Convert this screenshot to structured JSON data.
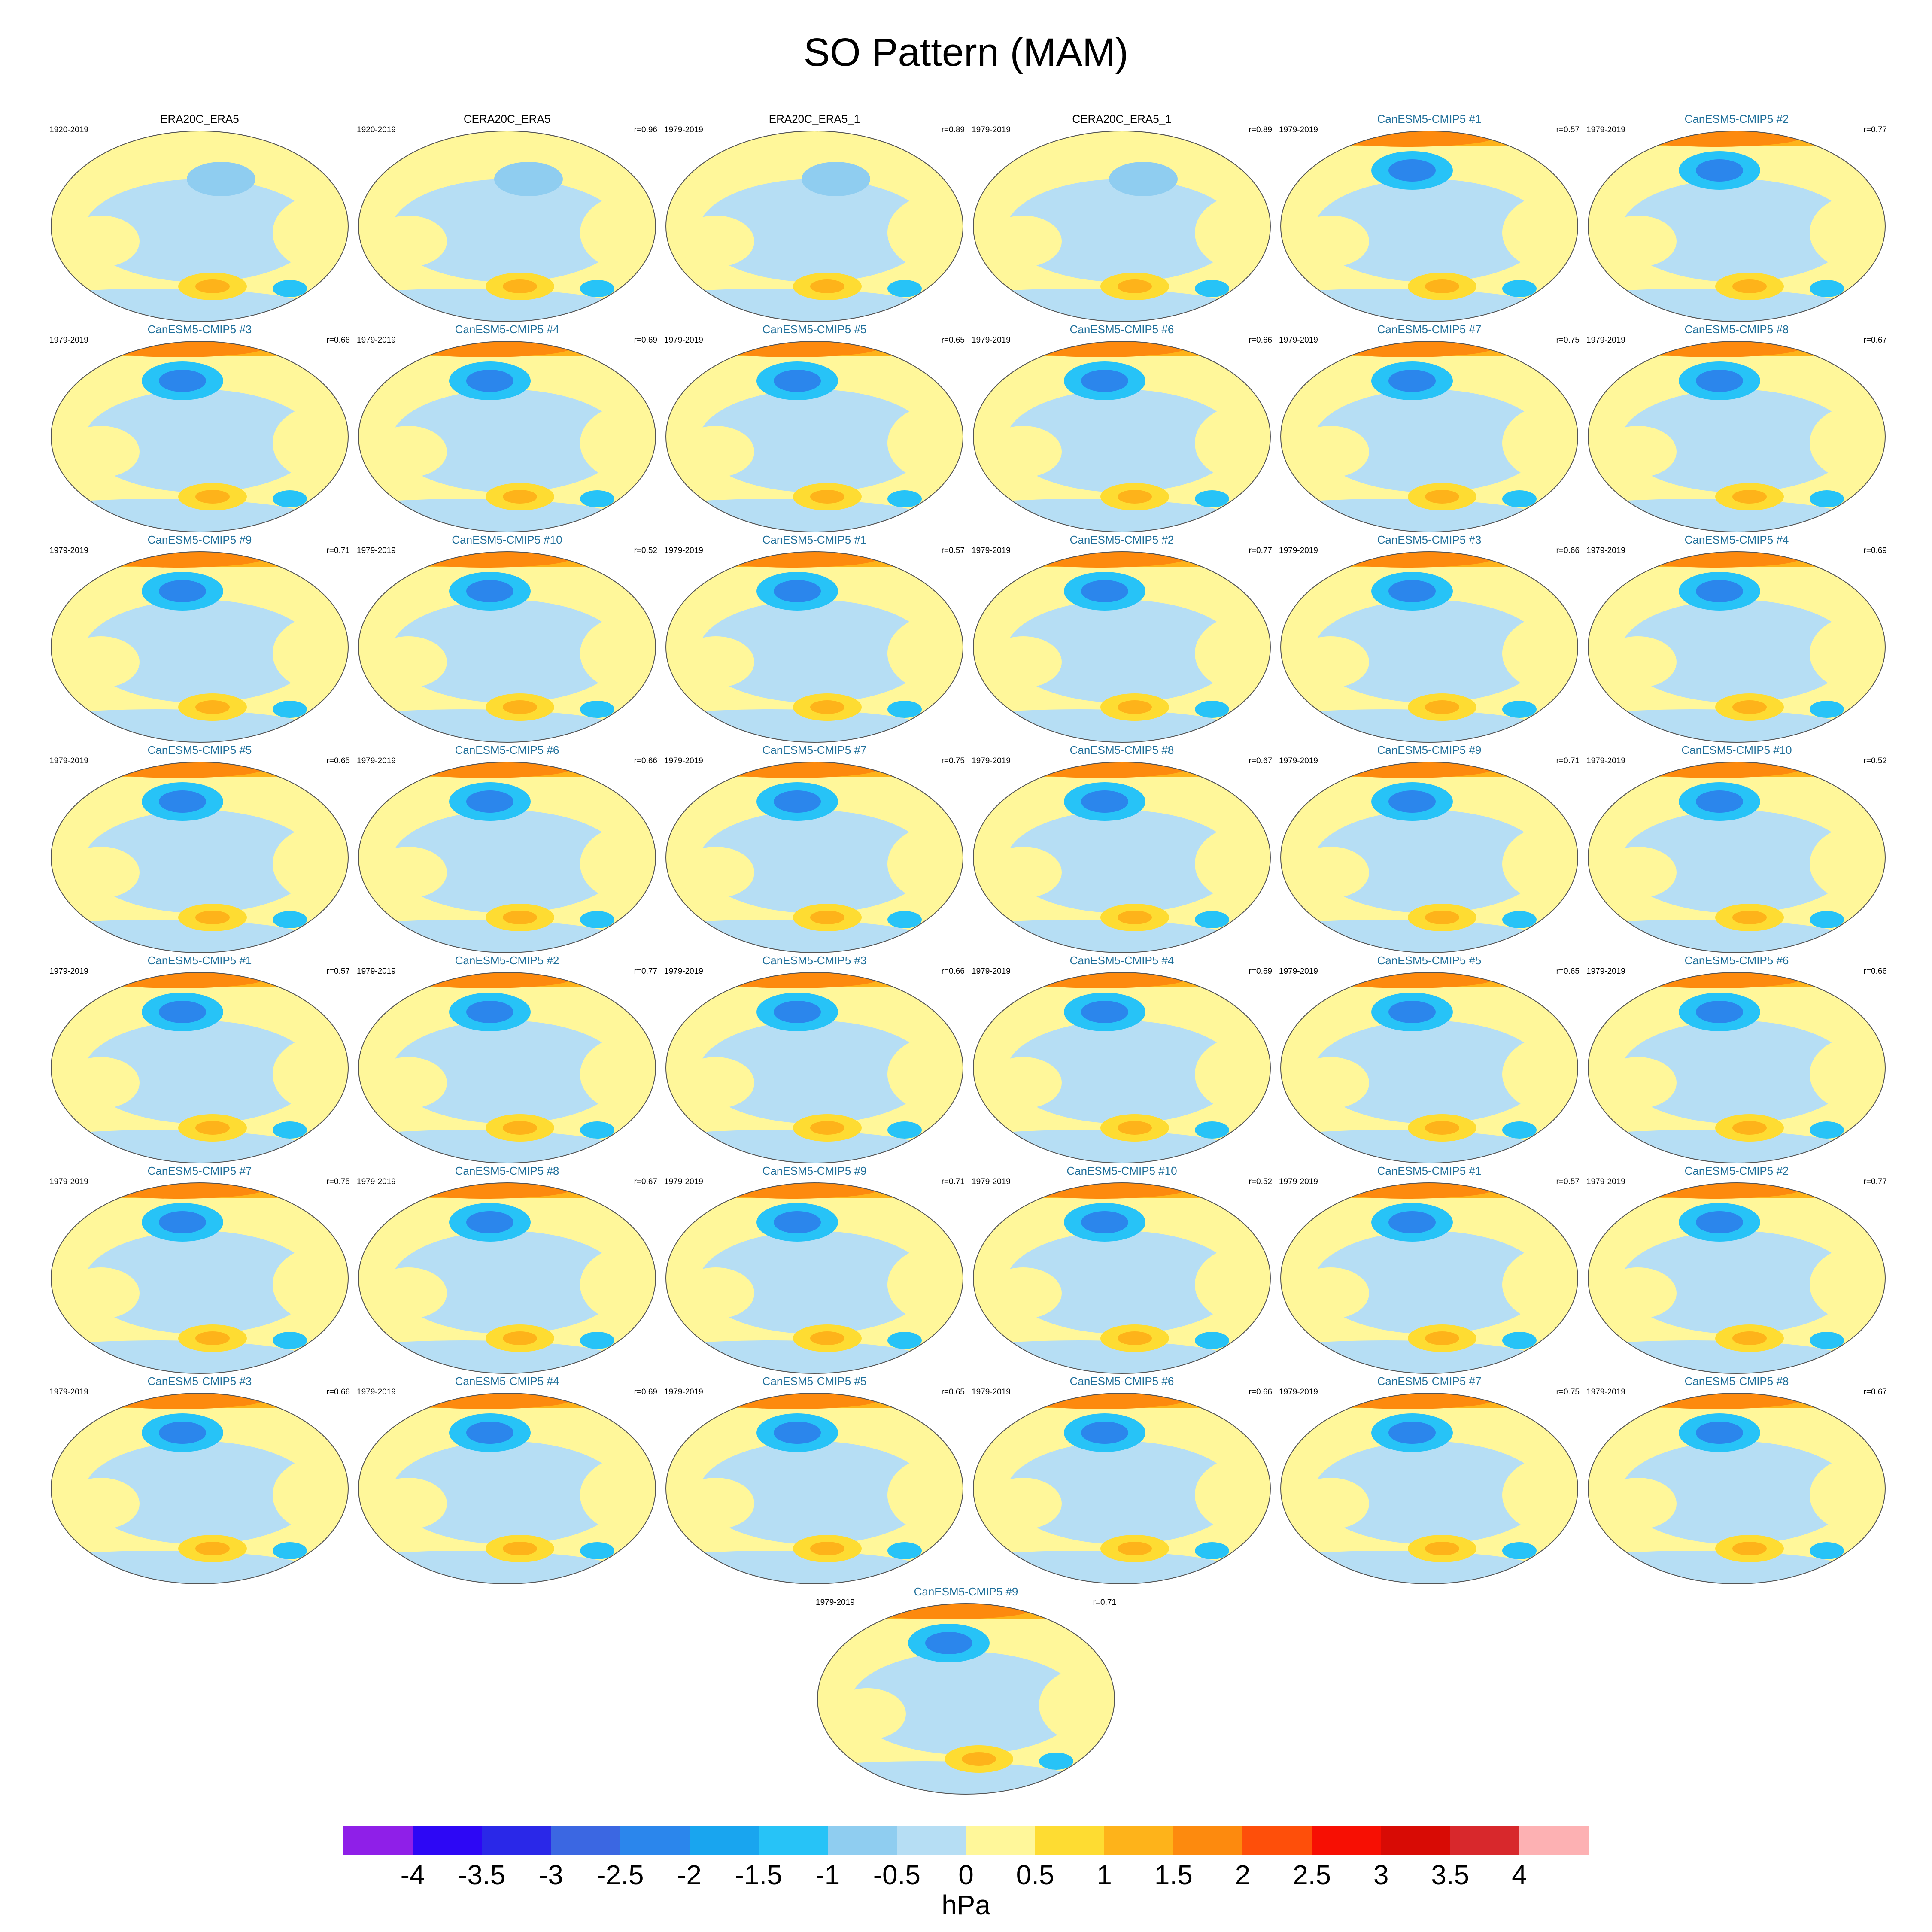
{
  "title": "SO Pattern (MAM)",
  "panels": [
    {
      "name": "ERA20C_ERA5",
      "period": "1920-2019",
      "r": "",
      "type": "ref"
    },
    {
      "name": "CERA20C_ERA5",
      "period": "1920-2019",
      "r": "r=0.96",
      "type": "ref"
    },
    {
      "name": "ERA20C_ERA5_1",
      "period": "1979-2019",
      "r": "r=0.89",
      "type": "ref"
    },
    {
      "name": "CERA20C_ERA5_1",
      "period": "1979-2019",
      "r": "r=0.89",
      "type": "ref"
    },
    {
      "name": "CanESM5-CMIP5 #1",
      "period": "1979-2019",
      "r": "r=0.57",
      "type": "model"
    },
    {
      "name": "CanESM5-CMIP5 #2",
      "period": "1979-2019",
      "r": "r=0.77",
      "type": "model"
    },
    {
      "name": "CanESM5-CMIP5 #3",
      "period": "1979-2019",
      "r": "r=0.66",
      "type": "model"
    },
    {
      "name": "CanESM5-CMIP5 #4",
      "period": "1979-2019",
      "r": "r=0.69",
      "type": "model"
    },
    {
      "name": "CanESM5-CMIP5 #5",
      "period": "1979-2019",
      "r": "r=0.65",
      "type": "model"
    },
    {
      "name": "CanESM5-CMIP5 #6",
      "period": "1979-2019",
      "r": "r=0.66",
      "type": "model"
    },
    {
      "name": "CanESM5-CMIP5 #7",
      "period": "1979-2019",
      "r": "r=0.75",
      "type": "model"
    },
    {
      "name": "CanESM5-CMIP5 #8",
      "period": "1979-2019",
      "r": "r=0.67",
      "type": "model"
    },
    {
      "name": "CanESM5-CMIP5 #9",
      "period": "1979-2019",
      "r": "r=0.71",
      "type": "model"
    },
    {
      "name": "CanESM5-CMIP5 #10",
      "period": "1979-2019",
      "r": "r=0.52",
      "type": "model"
    },
    {
      "name": "CanESM5-CMIP5 #1",
      "period": "1979-2019",
      "r": "r=0.57",
      "type": "model"
    },
    {
      "name": "CanESM5-CMIP5 #2",
      "period": "1979-2019",
      "r": "r=0.77",
      "type": "model"
    },
    {
      "name": "CanESM5-CMIP5 #3",
      "period": "1979-2019",
      "r": "r=0.66",
      "type": "model"
    },
    {
      "name": "CanESM5-CMIP5 #4",
      "period": "1979-2019",
      "r": "r=0.69",
      "type": "model"
    },
    {
      "name": "CanESM5-CMIP5 #5",
      "period": "1979-2019",
      "r": "r=0.65",
      "type": "model"
    },
    {
      "name": "CanESM5-CMIP5 #6",
      "period": "1979-2019",
      "r": "r=0.66",
      "type": "model"
    },
    {
      "name": "CanESM5-CMIP5 #7",
      "period": "1979-2019",
      "r": "r=0.75",
      "type": "model"
    },
    {
      "name": "CanESM5-CMIP5 #8",
      "period": "1979-2019",
      "r": "r=0.67",
      "type": "model"
    },
    {
      "name": "CanESM5-CMIP5 #9",
      "period": "1979-2019",
      "r": "r=0.71",
      "type": "model"
    },
    {
      "name": "CanESM5-CMIP5 #10",
      "period": "1979-2019",
      "r": "r=0.52",
      "type": "model"
    },
    {
      "name": "CanESM5-CMIP5 #1",
      "period": "1979-2019",
      "r": "r=0.57",
      "type": "model"
    },
    {
      "name": "CanESM5-CMIP5 #2",
      "period": "1979-2019",
      "r": "r=0.77",
      "type": "model"
    },
    {
      "name": "CanESM5-CMIP5 #3",
      "period": "1979-2019",
      "r": "r=0.66",
      "type": "model"
    },
    {
      "name": "CanESM5-CMIP5 #4",
      "period": "1979-2019",
      "r": "r=0.69",
      "type": "model"
    },
    {
      "name": "CanESM5-CMIP5 #5",
      "period": "1979-2019",
      "r": "r=0.65",
      "type": "model"
    },
    {
      "name": "CanESM5-CMIP5 #6",
      "period": "1979-2019",
      "r": "r=0.66",
      "type": "model"
    },
    {
      "name": "CanESM5-CMIP5 #7",
      "period": "1979-2019",
      "r": "r=0.75",
      "type": "model"
    },
    {
      "name": "CanESM5-CMIP5 #8",
      "period": "1979-2019",
      "r": "r=0.67",
      "type": "model"
    },
    {
      "name": "CanESM5-CMIP5 #9",
      "period": "1979-2019",
      "r": "r=0.71",
      "type": "model"
    },
    {
      "name": "CanESM5-CMIP5 #10",
      "period": "1979-2019",
      "r": "r=0.52",
      "type": "model"
    },
    {
      "name": "CanESM5-CMIP5 #1",
      "period": "1979-2019",
      "r": "r=0.57",
      "type": "model"
    },
    {
      "name": "CanESM5-CMIP5 #2",
      "period": "1979-2019",
      "r": "r=0.77",
      "type": "model"
    },
    {
      "name": "CanESM5-CMIP5 #3",
      "period": "1979-2019",
      "r": "r=0.66",
      "type": "model"
    },
    {
      "name": "CanESM5-CMIP5 #4",
      "period": "1979-2019",
      "r": "r=0.69",
      "type": "model"
    },
    {
      "name": "CanESM5-CMIP5 #5",
      "period": "1979-2019",
      "r": "r=0.65",
      "type": "model"
    },
    {
      "name": "CanESM5-CMIP5 #6",
      "period": "1979-2019",
      "r": "r=0.66",
      "type": "model"
    },
    {
      "name": "CanESM5-CMIP5 #7",
      "period": "1979-2019",
      "r": "r=0.75",
      "type": "model"
    },
    {
      "name": "CanESM5-CMIP5 #8",
      "period": "1979-2019",
      "r": "r=0.67",
      "type": "model"
    },
    {
      "name": "CanESM5-CMIP5 #9",
      "period": "1979-2019",
      "r": "r=0.71",
      "type": "model"
    }
  ],
  "colorbar": {
    "unit": "hPa",
    "labels": [
      "-4",
      "-3.5",
      "-3",
      "-2.5",
      "-2",
      "-1.5",
      "-1",
      "-0.5",
      "0",
      "0.5",
      "1",
      "1.5",
      "2",
      "2.5",
      "3",
      "3.5",
      "4"
    ],
    "colors": [
      "#8f1fe8",
      "#2d07f5",
      "#2a28e8",
      "#3b67e2",
      "#2b86ec",
      "#19a5ef",
      "#27c3f7",
      "#8fcdf0",
      "#b6def4",
      "#fff79a",
      "#fedc32",
      "#feb31a",
      "#fd8a0e",
      "#fe4f0a",
      "#f70f03",
      "#d80b05",
      "#d8282c",
      "#fdb1b3"
    ]
  },
  "style_colors": {
    "ocean_neutral_positive": "#fff79a",
    "light_negative": "#b6def4",
    "reference_title": "#000000",
    "model_title": "#1f6f9a"
  }
}
